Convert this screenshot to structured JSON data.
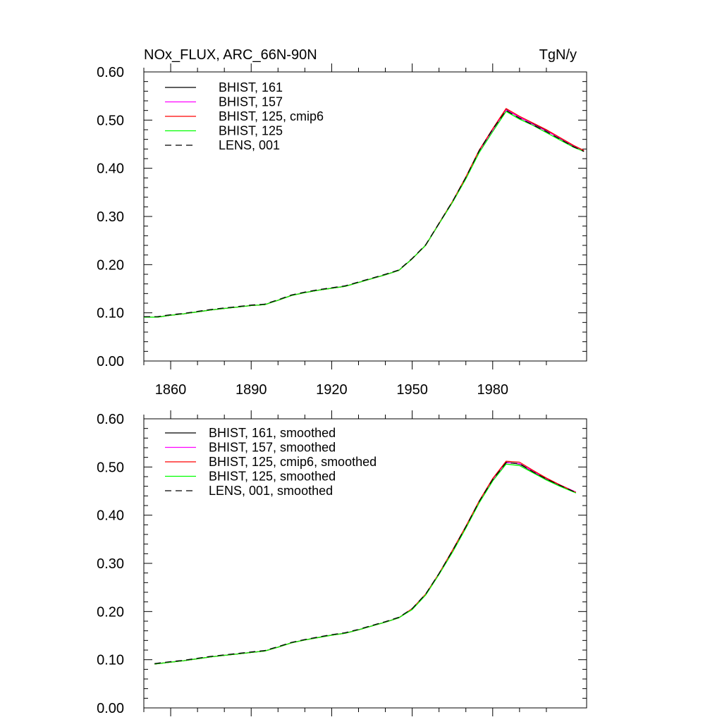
{
  "figure": {
    "title_left": "NOx_FLUX, ARC_66N-90N",
    "title_right": "TgN/y"
  },
  "chart_data": [
    {
      "type": "line",
      "title": "NOx_FLUX, ARC_66N-90N",
      "units": "TgN/y",
      "xlim": [
        1850,
        2015
      ],
      "ylim": [
        0.0,
        0.6
      ],
      "xticks": [
        1860,
        1890,
        1920,
        1950,
        1980
      ],
      "xtick_labels": [
        "1860",
        "1890",
        "1920",
        "1950",
        "1980"
      ],
      "yticks": [
        0.0,
        0.1,
        0.2,
        0.3,
        0.4,
        0.5,
        0.6
      ],
      "ytick_labels": [
        "0.00",
        "0.10",
        "0.20",
        "0.30",
        "0.40",
        "0.50",
        "0.60"
      ],
      "grid": false,
      "legend_position": "top-left",
      "x": [
        1850,
        1855,
        1860,
        1865,
        1870,
        1875,
        1880,
        1885,
        1890,
        1895,
        1900,
        1905,
        1910,
        1915,
        1920,
        1925,
        1930,
        1935,
        1940,
        1945,
        1950,
        1955,
        1960,
        1965,
        1970,
        1975,
        1980,
        1985,
        1990,
        1995,
        2000,
        2005,
        2010,
        2014
      ],
      "series": [
        {
          "name": "BHIST, 161",
          "color": "#000000",
          "dash": "solid",
          "values": [
            0.091,
            0.091,
            0.095,
            0.098,
            0.102,
            0.106,
            0.109,
            0.112,
            0.115,
            0.117,
            0.126,
            0.136,
            0.142,
            0.147,
            0.151,
            0.155,
            0.163,
            0.171,
            0.179,
            0.188,
            0.212,
            0.24,
            0.285,
            0.33,
            0.38,
            0.436,
            0.48,
            0.522,
            0.505,
            0.492,
            0.478,
            0.462,
            0.446,
            0.436
          ]
        },
        {
          "name": "BHIST, 157",
          "color": "#ff00ff",
          "dash": "solid",
          "values": [
            0.091,
            0.091,
            0.095,
            0.098,
            0.102,
            0.106,
            0.109,
            0.112,
            0.115,
            0.117,
            0.126,
            0.136,
            0.142,
            0.147,
            0.151,
            0.155,
            0.163,
            0.171,
            0.179,
            0.188,
            0.212,
            0.24,
            0.285,
            0.33,
            0.38,
            0.436,
            0.479,
            0.521,
            0.506,
            0.491,
            0.477,
            0.463,
            0.447,
            0.436
          ]
        },
        {
          "name": "BHIST, 125, cmip6",
          "color": "#ff0000",
          "dash": "solid",
          "values": [
            0.091,
            0.091,
            0.095,
            0.098,
            0.102,
            0.106,
            0.109,
            0.112,
            0.115,
            0.117,
            0.126,
            0.136,
            0.142,
            0.147,
            0.151,
            0.155,
            0.163,
            0.171,
            0.179,
            0.188,
            0.212,
            0.24,
            0.286,
            0.331,
            0.382,
            0.438,
            0.482,
            0.524,
            0.508,
            0.494,
            0.48,
            0.464,
            0.448,
            0.437
          ]
        },
        {
          "name": "BHIST, 125",
          "color": "#00ff00",
          "dash": "solid",
          "values": [
            0.091,
            0.091,
            0.095,
            0.098,
            0.102,
            0.106,
            0.109,
            0.112,
            0.115,
            0.117,
            0.126,
            0.136,
            0.142,
            0.147,
            0.151,
            0.155,
            0.163,
            0.171,
            0.179,
            0.188,
            0.212,
            0.24,
            0.285,
            0.329,
            0.378,
            0.433,
            0.476,
            0.518,
            0.502,
            0.489,
            0.474,
            0.459,
            0.444,
            0.435
          ]
        },
        {
          "name": "LENS, 001",
          "color": "#000000",
          "dash": "dashed",
          "values": [
            0.092,
            0.092,
            0.096,
            0.099,
            0.103,
            0.107,
            0.11,
            0.113,
            0.116,
            0.118,
            0.127,
            0.137,
            0.143,
            0.148,
            0.152,
            0.156,
            0.164,
            0.172,
            0.18,
            0.189,
            0.213,
            0.241,
            0.286,
            0.331,
            0.381,
            0.437,
            0.481,
            0.52,
            0.504,
            0.49,
            0.476,
            0.461,
            0.445,
            0.435
          ]
        }
      ]
    },
    {
      "type": "line",
      "xlim": [
        1850,
        2015
      ],
      "ylim": [
        0.0,
        0.6
      ],
      "xticks": [
        1860,
        1890,
        1920,
        1950,
        1980
      ],
      "yticks": [
        0.0,
        0.1,
        0.2,
        0.3,
        0.4,
        0.5,
        0.6
      ],
      "ytick_labels": [
        "0.00",
        "0.10",
        "0.20",
        "0.30",
        "0.40",
        "0.50",
        "0.60"
      ],
      "grid": false,
      "legend_position": "top-left",
      "x": [
        1854,
        1860,
        1865,
        1870,
        1875,
        1880,
        1885,
        1890,
        1895,
        1900,
        1905,
        1910,
        1915,
        1920,
        1925,
        1930,
        1935,
        1940,
        1945,
        1950,
        1955,
        1960,
        1965,
        1970,
        1975,
        1980,
        1985,
        1990,
        1995,
        2000,
        2005,
        2011
      ],
      "series": [
        {
          "name": "BHIST, 161, smoothed",
          "color": "#000000",
          "dash": "solid",
          "values": [
            0.091,
            0.095,
            0.098,
            0.102,
            0.106,
            0.109,
            0.112,
            0.115,
            0.118,
            0.126,
            0.135,
            0.141,
            0.146,
            0.151,
            0.155,
            0.162,
            0.17,
            0.178,
            0.187,
            0.205,
            0.235,
            0.278,
            0.325,
            0.375,
            0.428,
            0.474,
            0.51,
            0.506,
            0.49,
            0.475,
            0.462,
            0.447
          ]
        },
        {
          "name": "BHIST, 157, smoothed",
          "color": "#ff00ff",
          "dash": "solid",
          "values": [
            0.091,
            0.095,
            0.098,
            0.102,
            0.106,
            0.109,
            0.112,
            0.115,
            0.118,
            0.126,
            0.135,
            0.141,
            0.146,
            0.151,
            0.155,
            0.162,
            0.17,
            0.178,
            0.187,
            0.205,
            0.235,
            0.278,
            0.325,
            0.375,
            0.428,
            0.473,
            0.509,
            0.507,
            0.491,
            0.476,
            0.463,
            0.448
          ]
        },
        {
          "name": "BHIST, 125, cmip6, smoothed",
          "color": "#ff0000",
          "dash": "solid",
          "values": [
            0.091,
            0.095,
            0.098,
            0.102,
            0.106,
            0.109,
            0.112,
            0.115,
            0.118,
            0.126,
            0.135,
            0.141,
            0.146,
            0.151,
            0.155,
            0.162,
            0.17,
            0.178,
            0.187,
            0.206,
            0.236,
            0.279,
            0.327,
            0.377,
            0.43,
            0.476,
            0.512,
            0.51,
            0.493,
            0.477,
            0.463,
            0.447
          ]
        },
        {
          "name": "BHIST, 125, smoothed",
          "color": "#00ff00",
          "dash": "solid",
          "values": [
            0.091,
            0.095,
            0.098,
            0.102,
            0.106,
            0.109,
            0.112,
            0.115,
            0.118,
            0.126,
            0.135,
            0.141,
            0.146,
            0.151,
            0.155,
            0.162,
            0.17,
            0.178,
            0.187,
            0.204,
            0.234,
            0.277,
            0.323,
            0.373,
            0.426,
            0.471,
            0.506,
            0.503,
            0.488,
            0.473,
            0.46,
            0.446
          ]
        },
        {
          "name": "LENS, 001, smoothed",
          "color": "#000000",
          "dash": "dashed",
          "values": [
            0.092,
            0.096,
            0.099,
            0.103,
            0.107,
            0.11,
            0.113,
            0.116,
            0.119,
            0.127,
            0.136,
            0.142,
            0.147,
            0.152,
            0.156,
            0.163,
            0.171,
            0.179,
            0.188,
            0.206,
            0.236,
            0.279,
            0.326,
            0.376,
            0.429,
            0.474,
            0.509,
            0.507,
            0.49,
            0.475,
            0.462,
            0.447
          ]
        }
      ]
    }
  ]
}
